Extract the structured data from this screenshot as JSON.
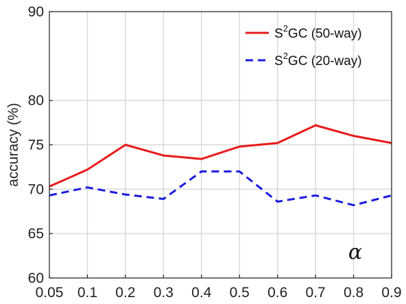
{
  "chart_data": {
    "type": "line",
    "title": "",
    "xlabel": "",
    "ylabel": "accuracy (%)",
    "annotation": "α",
    "x": [
      0.05,
      0.1,
      0.2,
      0.3,
      0.4,
      0.5,
      0.6,
      0.7,
      0.8,
      0.9
    ],
    "x_tick_labels": [
      "0.05",
      "0.1",
      "0.2",
      "0.3",
      "0.4",
      "0.5",
      "0.6",
      "0.7",
      "0.8",
      "0.9"
    ],
    "y_ticks": [
      60,
      65,
      70,
      75,
      80,
      90
    ],
    "ylim": [
      60,
      90
    ],
    "grid": true,
    "legend_position": "top-right",
    "series": [
      {
        "name_base": "S",
        "name_sup": "2",
        "name_rest": "GC (50-way)",
        "style": "solid",
        "color": "#e8191a",
        "values": [
          70.3,
          72.2,
          75.0,
          73.8,
          73.4,
          74.8,
          75.2,
          77.2,
          76.0,
          75.2
        ]
      },
      {
        "name_base": "S",
        "name_sup": "2",
        "name_rest": "GC (20-way)",
        "style": "dashed",
        "color": "#1a1ae0",
        "values": [
          69.3,
          70.2,
          69.4,
          68.9,
          72.0,
          72.0,
          68.6,
          69.3,
          68.2,
          69.3
        ]
      }
    ]
  }
}
